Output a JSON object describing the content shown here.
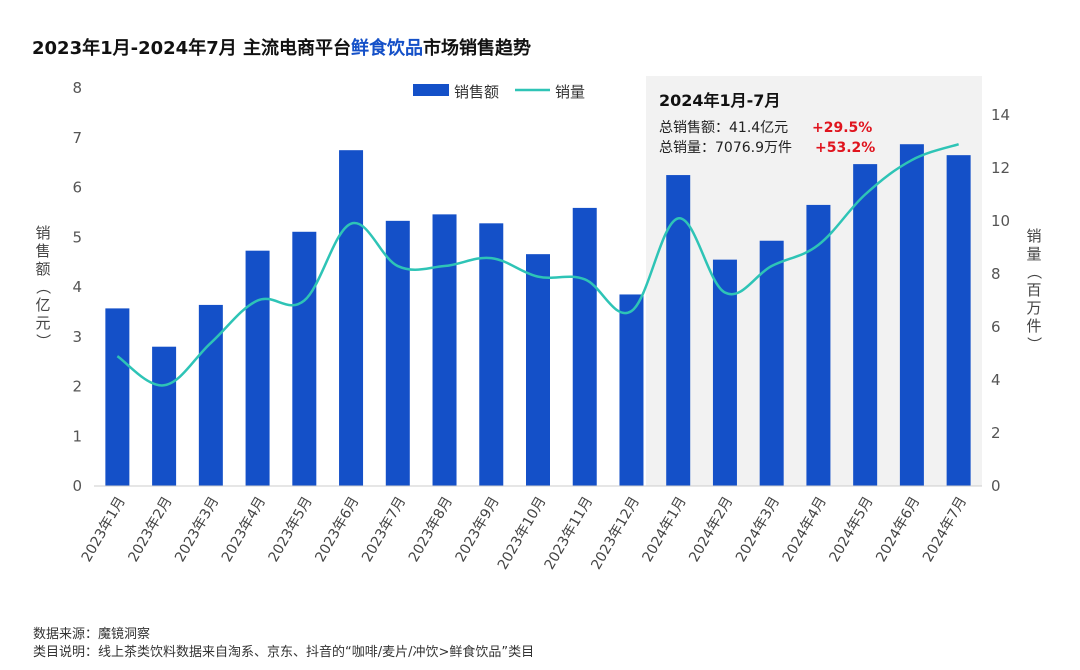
{
  "title": {
    "prefix": "2023年1月-2024年7月 主流电商平台",
    "highlight": "鲜食饮品",
    "suffix": "市场销售趋势"
  },
  "colors": {
    "bar": "#1450c8",
    "line": "#2ec4b6",
    "highlight_bg": "#f2f2f2",
    "pct": "#e0141e"
  },
  "highlight_box": {
    "title": "2024年1月-7月",
    "sales_label": "总销售额：41.4亿元",
    "sales_change": "+29.5%",
    "volume_label": "总销量：7076.9万件",
    "volume_change": "+53.2%"
  },
  "chart_data": {
    "type": "bar+line",
    "categories": [
      "2023年1月",
      "2023年2月",
      "2023年3月",
      "2023年4月",
      "2023年5月",
      "2023年6月",
      "2023年7月",
      "2023年8月",
      "2023年9月",
      "2023年10月",
      "2023年11月",
      "2023年12月",
      "2024年1月",
      "2024年2月",
      "2024年3月",
      "2024年4月",
      "2024年5月",
      "2024年6月",
      "2024年7月"
    ],
    "series": [
      {
        "name": "销售额",
        "type": "bar",
        "axis": "left",
        "values": [
          3.57,
          2.8,
          3.64,
          4.73,
          5.11,
          6.75,
          5.33,
          5.46,
          5.28,
          4.66,
          5.59,
          3.85,
          6.25,
          4.55,
          4.93,
          5.65,
          6.47,
          6.87,
          6.65
        ]
      },
      {
        "name": "销量",
        "type": "line",
        "axis": "right",
        "values": [
          4.9,
          3.8,
          5.4,
          7.0,
          7.0,
          9.9,
          8.3,
          8.3,
          8.6,
          7.9,
          7.8,
          6.6,
          10.1,
          7.3,
          8.3,
          9.1,
          11.0,
          12.3,
          12.9
        ]
      }
    ],
    "y_left": {
      "label": "销售额（亿元）",
      "ticks": [
        "0",
        "1",
        "2",
        "3",
        "4",
        "5",
        "6",
        "7",
        "8"
      ],
      "range": [
        0,
        8
      ]
    },
    "y_right": {
      "label": "销量（百万件）",
      "ticks": [
        "0",
        "2",
        "4",
        "6",
        "8",
        "10",
        "12",
        "14"
      ],
      "range": [
        0,
        15
      ]
    },
    "legend_position": "top-center",
    "highlight_range": [
      "2024年1月",
      "2024年7月"
    ]
  },
  "footer": {
    "source": "数据来源：魔镜洞察",
    "note": "类目说明：线上茶类饮料数据来自淘系、京东、抖音的“咖啡/麦片/冲饮>鲜食饮品”类目"
  }
}
